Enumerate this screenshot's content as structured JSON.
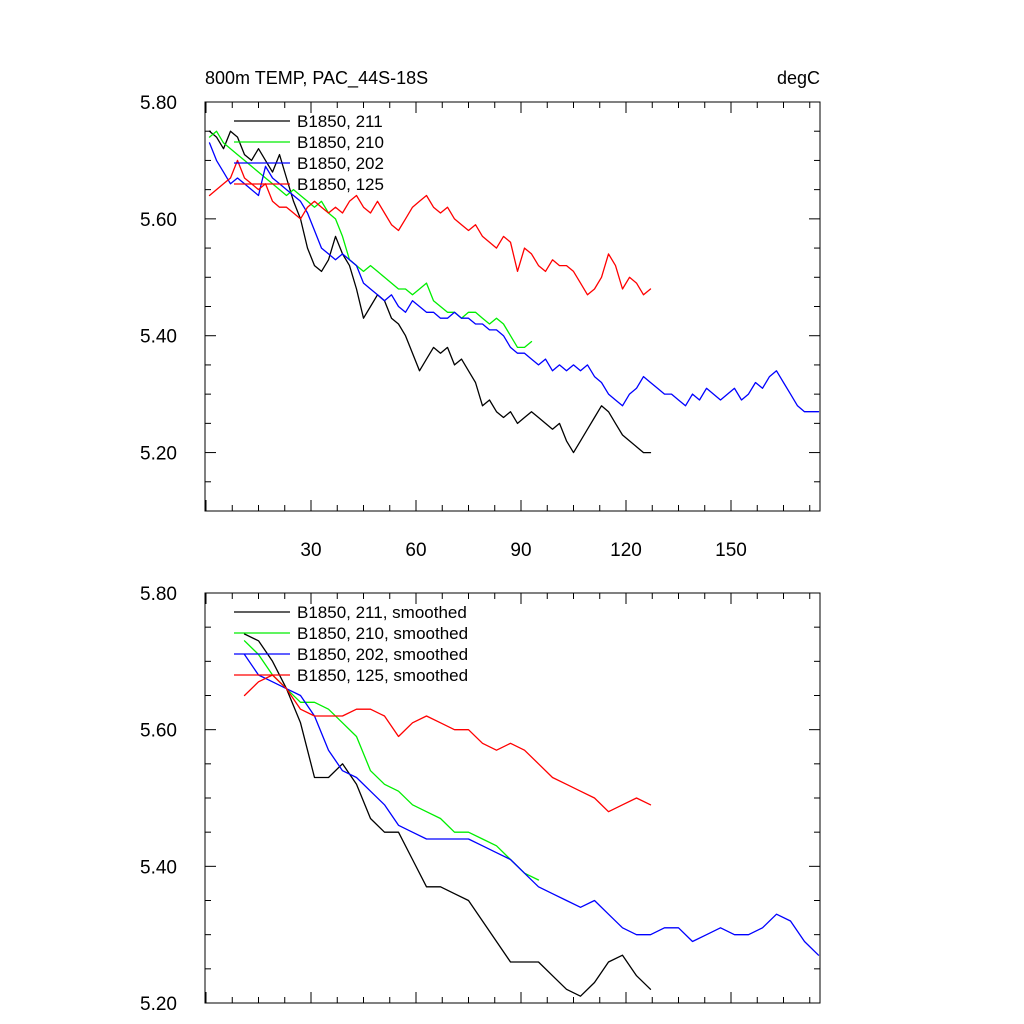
{
  "chart_data": [
    {
      "type": "line",
      "title": "800m TEMP, PAC_44S-18S",
      "units": "degC",
      "xticks": [
        30,
        60,
        90,
        120,
        150
      ],
      "yticks": [
        5.8,
        5.6,
        5.4,
        5.2
      ],
      "ytick_labels": [
        "5.80",
        "5.60",
        "5.40",
        "5.20"
      ],
      "xlim": [
        1,
        176
      ],
      "ylim": [
        5.1,
        5.8
      ],
      "series": [
        {
          "name": "B1850, 211",
          "color": "#000000",
          "x": [
            1,
            3,
            5,
            7,
            9,
            11,
            13,
            15,
            17,
            19,
            21,
            23,
            25,
            27,
            29,
            31,
            33,
            35,
            37,
            39,
            41,
            43,
            45,
            47,
            49,
            51,
            53,
            55,
            57,
            59,
            61,
            63,
            65,
            67,
            69,
            71,
            73,
            75,
            77,
            79,
            81,
            83,
            85,
            87,
            89,
            91,
            93,
            95,
            97,
            99,
            101,
            103,
            105,
            107,
            109,
            111,
            113,
            115,
            117,
            119,
            121,
            123,
            125,
            127
          ],
          "y": [
            5.75,
            5.74,
            5.72,
            5.75,
            5.74,
            5.71,
            5.7,
            5.72,
            5.7,
            5.68,
            5.71,
            5.67,
            5.63,
            5.6,
            5.55,
            5.52,
            5.51,
            5.53,
            5.57,
            5.54,
            5.52,
            5.48,
            5.43,
            5.45,
            5.47,
            5.46,
            5.43,
            5.42,
            5.4,
            5.37,
            5.34,
            5.36,
            5.38,
            5.37,
            5.38,
            5.35,
            5.36,
            5.34,
            5.32,
            5.28,
            5.29,
            5.27,
            5.26,
            5.27,
            5.25,
            5.26,
            5.27,
            5.26,
            5.25,
            5.24,
            5.25,
            5.22,
            5.2,
            5.22,
            5.24,
            5.26,
            5.28,
            5.27,
            5.25,
            5.23,
            5.22,
            5.21,
            5.2,
            5.2
          ]
        },
        {
          "name": "B1850, 210",
          "color": "#00ee00",
          "x": [
            1,
            3,
            5,
            7,
            9,
            11,
            13,
            15,
            17,
            19,
            21,
            23,
            25,
            27,
            29,
            31,
            33,
            35,
            37,
            39,
            41,
            43,
            45,
            47,
            49,
            51,
            53,
            55,
            57,
            59,
            61,
            63,
            65,
            67,
            69,
            71,
            73,
            75,
            77,
            79,
            81,
            83,
            85,
            87,
            89,
            91,
            93
          ],
          "y": [
            5.74,
            5.75,
            5.73,
            5.72,
            5.71,
            5.7,
            5.69,
            5.68,
            5.67,
            5.66,
            5.65,
            5.64,
            5.65,
            5.64,
            5.63,
            5.62,
            5.63,
            5.61,
            5.6,
            5.57,
            5.53,
            5.52,
            5.51,
            5.52,
            5.51,
            5.5,
            5.49,
            5.48,
            5.48,
            5.47,
            5.48,
            5.49,
            5.46,
            5.45,
            5.44,
            5.44,
            5.43,
            5.44,
            5.44,
            5.43,
            5.42,
            5.43,
            5.42,
            5.4,
            5.38,
            5.38,
            5.39
          ]
        },
        {
          "name": "B1850, 202",
          "color": "#0000ff",
          "x": [
            1,
            3,
            5,
            7,
            9,
            11,
            13,
            15,
            17,
            19,
            21,
            23,
            25,
            27,
            29,
            31,
            33,
            35,
            37,
            39,
            41,
            43,
            45,
            47,
            49,
            51,
            53,
            55,
            57,
            59,
            61,
            63,
            65,
            67,
            69,
            71,
            73,
            75,
            77,
            79,
            81,
            83,
            85,
            87,
            89,
            91,
            93,
            95,
            97,
            99,
            101,
            103,
            105,
            107,
            109,
            111,
            113,
            115,
            117,
            119,
            121,
            123,
            125,
            127,
            129,
            131,
            133,
            135,
            137,
            139,
            141,
            143,
            145,
            147,
            149,
            151,
            153,
            155,
            157,
            159,
            161,
            163,
            165,
            167,
            169,
            171,
            173,
            175
          ],
          "y": [
            5.73,
            5.7,
            5.68,
            5.66,
            5.67,
            5.66,
            5.65,
            5.64,
            5.69,
            5.67,
            5.66,
            5.65,
            5.64,
            5.63,
            5.61,
            5.58,
            5.55,
            5.54,
            5.53,
            5.54,
            5.53,
            5.52,
            5.49,
            5.48,
            5.47,
            5.46,
            5.47,
            5.45,
            5.44,
            5.46,
            5.45,
            5.44,
            5.44,
            5.43,
            5.43,
            5.44,
            5.43,
            5.43,
            5.42,
            5.42,
            5.41,
            5.41,
            5.4,
            5.38,
            5.37,
            5.37,
            5.36,
            5.35,
            5.36,
            5.34,
            5.35,
            5.34,
            5.35,
            5.34,
            5.35,
            5.33,
            5.32,
            5.3,
            5.29,
            5.28,
            5.3,
            5.31,
            5.33,
            5.32,
            5.31,
            5.3,
            5.3,
            5.29,
            5.28,
            5.3,
            5.29,
            5.31,
            5.3,
            5.29,
            5.3,
            5.31,
            5.29,
            5.3,
            5.32,
            5.31,
            5.33,
            5.34,
            5.32,
            5.3,
            5.28,
            5.27,
            5.27,
            5.27
          ]
        },
        {
          "name": "B1850, 125",
          "color": "#ff0000",
          "x": [
            1,
            3,
            5,
            7,
            9,
            11,
            13,
            15,
            17,
            19,
            21,
            23,
            25,
            27,
            29,
            31,
            33,
            35,
            37,
            39,
            41,
            43,
            45,
            47,
            49,
            51,
            53,
            55,
            57,
            59,
            61,
            63,
            65,
            67,
            69,
            71,
            73,
            75,
            77,
            79,
            81,
            83,
            85,
            87,
            89,
            91,
            93,
            95,
            97,
            99,
            101,
            103,
            105,
            107,
            109,
            111,
            113,
            115,
            117,
            119,
            121,
            123,
            125,
            127
          ],
          "y": [
            5.64,
            5.65,
            5.66,
            5.67,
            5.7,
            5.67,
            5.66,
            5.65,
            5.66,
            5.63,
            5.62,
            5.62,
            5.61,
            5.6,
            5.62,
            5.63,
            5.62,
            5.61,
            5.62,
            5.61,
            5.63,
            5.64,
            5.62,
            5.61,
            5.63,
            5.61,
            5.59,
            5.58,
            5.6,
            5.62,
            5.63,
            5.64,
            5.62,
            5.61,
            5.62,
            5.6,
            5.59,
            5.58,
            5.59,
            5.57,
            5.56,
            5.55,
            5.57,
            5.56,
            5.51,
            5.55,
            5.54,
            5.52,
            5.51,
            5.53,
            5.52,
            5.52,
            5.51,
            5.49,
            5.47,
            5.48,
            5.5,
            5.54,
            5.52,
            5.48,
            5.5,
            5.49,
            5.47,
            5.48
          ]
        }
      ]
    },
    {
      "type": "line",
      "title": "",
      "yticks": [
        5.8,
        5.6,
        5.4,
        5.2
      ],
      "ytick_labels": [
        "5.80",
        "5.60",
        "5.40",
        "5.20"
      ],
      "xlim": [
        1,
        176
      ],
      "ylim": [
        5.2,
        5.8
      ],
      "series": [
        {
          "name": "B1850, 211, smoothed",
          "color": "#000000",
          "x": [
            11,
            15,
            19,
            23,
            27,
            31,
            35,
            39,
            43,
            47,
            51,
            55,
            59,
            63,
            67,
            71,
            75,
            79,
            83,
            87,
            91,
            95,
            99,
            103,
            107,
            111,
            115,
            119,
            123,
            127
          ],
          "y": [
            5.74,
            5.73,
            5.7,
            5.66,
            5.61,
            5.53,
            5.53,
            5.55,
            5.52,
            5.47,
            5.45,
            5.45,
            5.41,
            5.37,
            5.37,
            5.36,
            5.35,
            5.32,
            5.29,
            5.26,
            5.26,
            5.26,
            5.24,
            5.22,
            5.21,
            5.23,
            5.26,
            5.27,
            5.24,
            5.22
          ]
        },
        {
          "name": "B1850, 210, smoothed",
          "color": "#00ee00",
          "x": [
            11,
            15,
            19,
            23,
            27,
            31,
            35,
            39,
            43,
            47,
            51,
            55,
            59,
            63,
            67,
            71,
            75,
            79,
            83,
            87,
            91,
            95
          ],
          "y": [
            5.73,
            5.71,
            5.68,
            5.66,
            5.64,
            5.64,
            5.63,
            5.61,
            5.59,
            5.54,
            5.52,
            5.51,
            5.49,
            5.48,
            5.47,
            5.45,
            5.45,
            5.44,
            5.43,
            5.41,
            5.39,
            5.38
          ]
        },
        {
          "name": "B1850, 202, smoothed",
          "color": "#0000ff",
          "x": [
            11,
            15,
            19,
            23,
            27,
            31,
            35,
            39,
            43,
            47,
            51,
            55,
            59,
            63,
            67,
            71,
            75,
            79,
            83,
            87,
            91,
            95,
            99,
            103,
            107,
            111,
            115,
            119,
            123,
            127,
            131,
            135,
            139,
            143,
            147,
            151,
            155,
            159,
            163,
            167,
            171,
            175
          ],
          "y": [
            5.71,
            5.68,
            5.67,
            5.66,
            5.65,
            5.62,
            5.57,
            5.54,
            5.53,
            5.51,
            5.49,
            5.46,
            5.45,
            5.44,
            5.44,
            5.44,
            5.44,
            5.43,
            5.42,
            5.41,
            5.39,
            5.37,
            5.36,
            5.35,
            5.34,
            5.35,
            5.33,
            5.31,
            5.3,
            5.3,
            5.31,
            5.31,
            5.29,
            5.3,
            5.31,
            5.3,
            5.3,
            5.31,
            5.33,
            5.32,
            5.29,
            5.27
          ]
        },
        {
          "name": "B1850, 125, smoothed",
          "color": "#ff0000",
          "x": [
            11,
            15,
            19,
            23,
            27,
            31,
            35,
            39,
            43,
            47,
            51,
            55,
            59,
            63,
            67,
            71,
            75,
            79,
            83,
            87,
            91,
            95,
            99,
            103,
            107,
            111,
            115,
            119,
            123,
            127
          ],
          "y": [
            5.65,
            5.67,
            5.68,
            5.66,
            5.63,
            5.62,
            5.62,
            5.62,
            5.63,
            5.63,
            5.62,
            5.59,
            5.61,
            5.62,
            5.61,
            5.6,
            5.6,
            5.58,
            5.57,
            5.58,
            5.57,
            5.55,
            5.53,
            5.52,
            5.51,
            5.5,
            5.48,
            5.49,
            5.5,
            5.49
          ]
        }
      ]
    }
  ]
}
